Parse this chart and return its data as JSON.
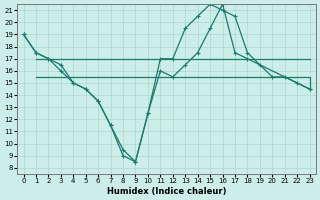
{
  "xlabel": "Humidex (Indice chaleur)",
  "xlim": [
    -0.5,
    23.5
  ],
  "ylim": [
    7.5,
    21.5
  ],
  "xticks": [
    0,
    1,
    2,
    3,
    4,
    5,
    6,
    7,
    8,
    9,
    10,
    11,
    12,
    13,
    14,
    15,
    16,
    17,
    18,
    19,
    20,
    21,
    22,
    23
  ],
  "yticks": [
    8,
    9,
    10,
    11,
    12,
    13,
    14,
    15,
    16,
    17,
    18,
    19,
    20,
    21
  ],
  "bg_color": "#cdeee8",
  "line_color": "#1a7a6e",
  "grid_color": "#aad8d0",
  "series_main1": {
    "x": [
      0,
      1,
      2,
      3,
      4,
      5,
      6,
      7,
      8,
      9,
      10,
      11,
      12,
      13,
      14,
      15,
      16,
      17,
      18,
      19,
      20,
      21,
      22,
      23
    ],
    "y": [
      19,
      17.5,
      17,
      16.5,
      15,
      14.5,
      13.5,
      11.5,
      9.5,
      8.5,
      12.5,
      17,
      17,
      19.5,
      20.5,
      21.5,
      21,
      20.5,
      17.5,
      16.5,
      15.5,
      15.5,
      15,
      14.5
    ]
  },
  "series_main2": {
    "x": [
      0,
      1,
      2,
      3,
      4,
      5,
      6,
      7,
      8,
      9,
      10,
      11,
      12,
      13,
      14,
      15,
      16,
      17,
      18,
      23
    ],
    "y": [
      19,
      17.5,
      17,
      16,
      15,
      14.5,
      13.5,
      11.5,
      9,
      8.5,
      12.5,
      16,
      15.5,
      16.5,
      17.5,
      19.5,
      21.5,
      17.5,
      17,
      14.5
    ]
  },
  "series_flat1": {
    "x": [
      1,
      2,
      3,
      4,
      5,
      6,
      7,
      8,
      9,
      10,
      11,
      12,
      13,
      14,
      15,
      16,
      17,
      18,
      19,
      20,
      21,
      22,
      23
    ],
    "y": [
      17,
      17,
      17,
      17,
      17,
      17,
      17,
      17,
      17,
      17,
      17,
      17,
      17,
      17,
      17,
      17,
      17,
      17,
      17,
      17,
      17,
      17,
      17
    ]
  },
  "series_flat2": {
    "x": [
      1,
      2,
      3,
      4,
      5,
      6,
      7,
      8,
      9,
      10,
      11,
      12,
      13,
      14,
      15,
      16,
      17,
      18,
      19,
      20,
      21,
      22,
      23
    ],
    "y": [
      15.5,
      15.5,
      15.5,
      15.5,
      15.5,
      15.5,
      15.5,
      15.5,
      15.5,
      15.5,
      15.5,
      15.5,
      15.5,
      15.5,
      15.5,
      15.5,
      15.5,
      15.5,
      15.5,
      15.5,
      15.5,
      15.5,
      14.5
    ]
  }
}
